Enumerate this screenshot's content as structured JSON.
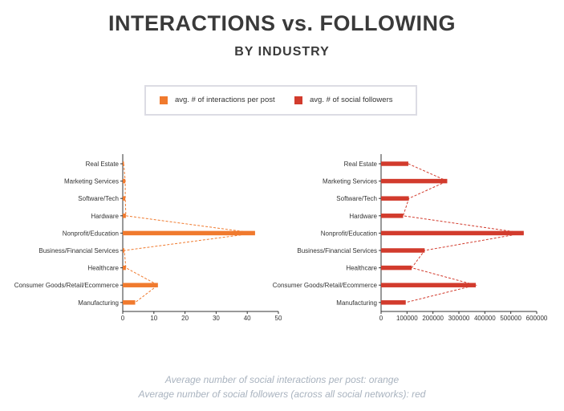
{
  "header": {
    "title": "INTERACTIONS vs. FOLLOWING",
    "subtitle": "BY INDUSTRY"
  },
  "legend": {
    "items": [
      {
        "label": "avg. # of interactions per post",
        "color": "#f07a2e"
      },
      {
        "label": "avg. # of social followers",
        "color": "#d23b2d"
      }
    ]
  },
  "footnotes": [
    "Average number of social interactions per post: orange",
    "Average number of social followers (across all social networks): red"
  ],
  "chart_data": [
    {
      "type": "bar",
      "orientation": "horizontal",
      "color": "#f07a2e",
      "categories": [
        "Real Estate",
        "Marketing Services",
        "Software/Tech",
        "Hardware",
        "Nonprofit/Education",
        "Business/Financial Services",
        "Healthcare",
        "Consumer Goods/Retail/Ecommerce",
        "Manufacturing"
      ],
      "values": [
        0.3,
        0.8,
        0.8,
        1.0,
        42.5,
        0.5,
        1.0,
        11.3,
        4.0
      ],
      "xlim": [
        0,
        50
      ],
      "xticks": [
        0,
        10,
        20,
        30,
        40,
        50
      ],
      "connector": "dashed"
    },
    {
      "type": "bar",
      "orientation": "horizontal",
      "color": "#d23b2d",
      "categories": [
        "Real Estate",
        "Marketing Services",
        "Software/Tech",
        "Hardware",
        "Nonprofit/Education",
        "Business/Financial Services",
        "Healthcare",
        "Consumer Goods/Retail/Ecommerce",
        "Manufacturing"
      ],
      "values": [
        105000,
        255000,
        107000,
        85000,
        550000,
        168000,
        118000,
        365000,
        95000
      ],
      "xlim": [
        0,
        600000
      ],
      "xticks": [
        0,
        100000,
        200000,
        300000,
        400000,
        500000,
        600000
      ],
      "connector": "dashed"
    }
  ]
}
